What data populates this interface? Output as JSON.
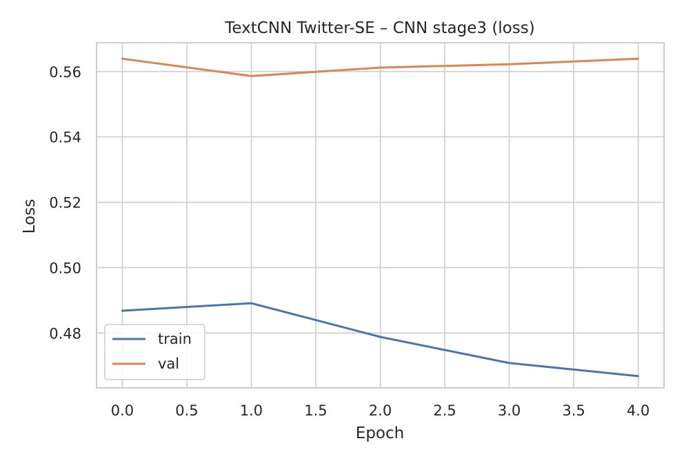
{
  "chart_data": {
    "type": "line",
    "title": "TextCNN Twitter-SE – CNN stage3 (loss)",
    "xlabel": "Epoch",
    "ylabel": "Loss",
    "x": [
      0,
      1,
      2,
      3,
      4
    ],
    "series": [
      {
        "name": "train",
        "color": "#4c72b0",
        "values": [
          0.4868,
          0.4891,
          0.4788,
          0.4708,
          0.4668
        ]
      },
      {
        "name": "val",
        "color": "#dd8452",
        "values": [
          0.5639,
          0.5586,
          0.5612,
          0.5622,
          0.5639
        ]
      }
    ],
    "xlim": [
      -0.2,
      4.2
    ],
    "ylim": [
      0.4632,
      0.5688
    ],
    "xticks": [
      0.0,
      0.5,
      1.0,
      1.5,
      2.0,
      2.5,
      3.0,
      3.5,
      4.0
    ],
    "xtick_labels": [
      "0.0",
      "0.5",
      "1.0",
      "1.5",
      "2.0",
      "2.5",
      "3.0",
      "3.5",
      "4.0"
    ],
    "yticks": [
      0.48,
      0.5,
      0.52,
      0.54,
      0.56
    ],
    "ytick_labels": [
      "0.48",
      "0.50",
      "0.52",
      "0.54",
      "0.56"
    ],
    "grid": true,
    "legend": "lower-left"
  }
}
